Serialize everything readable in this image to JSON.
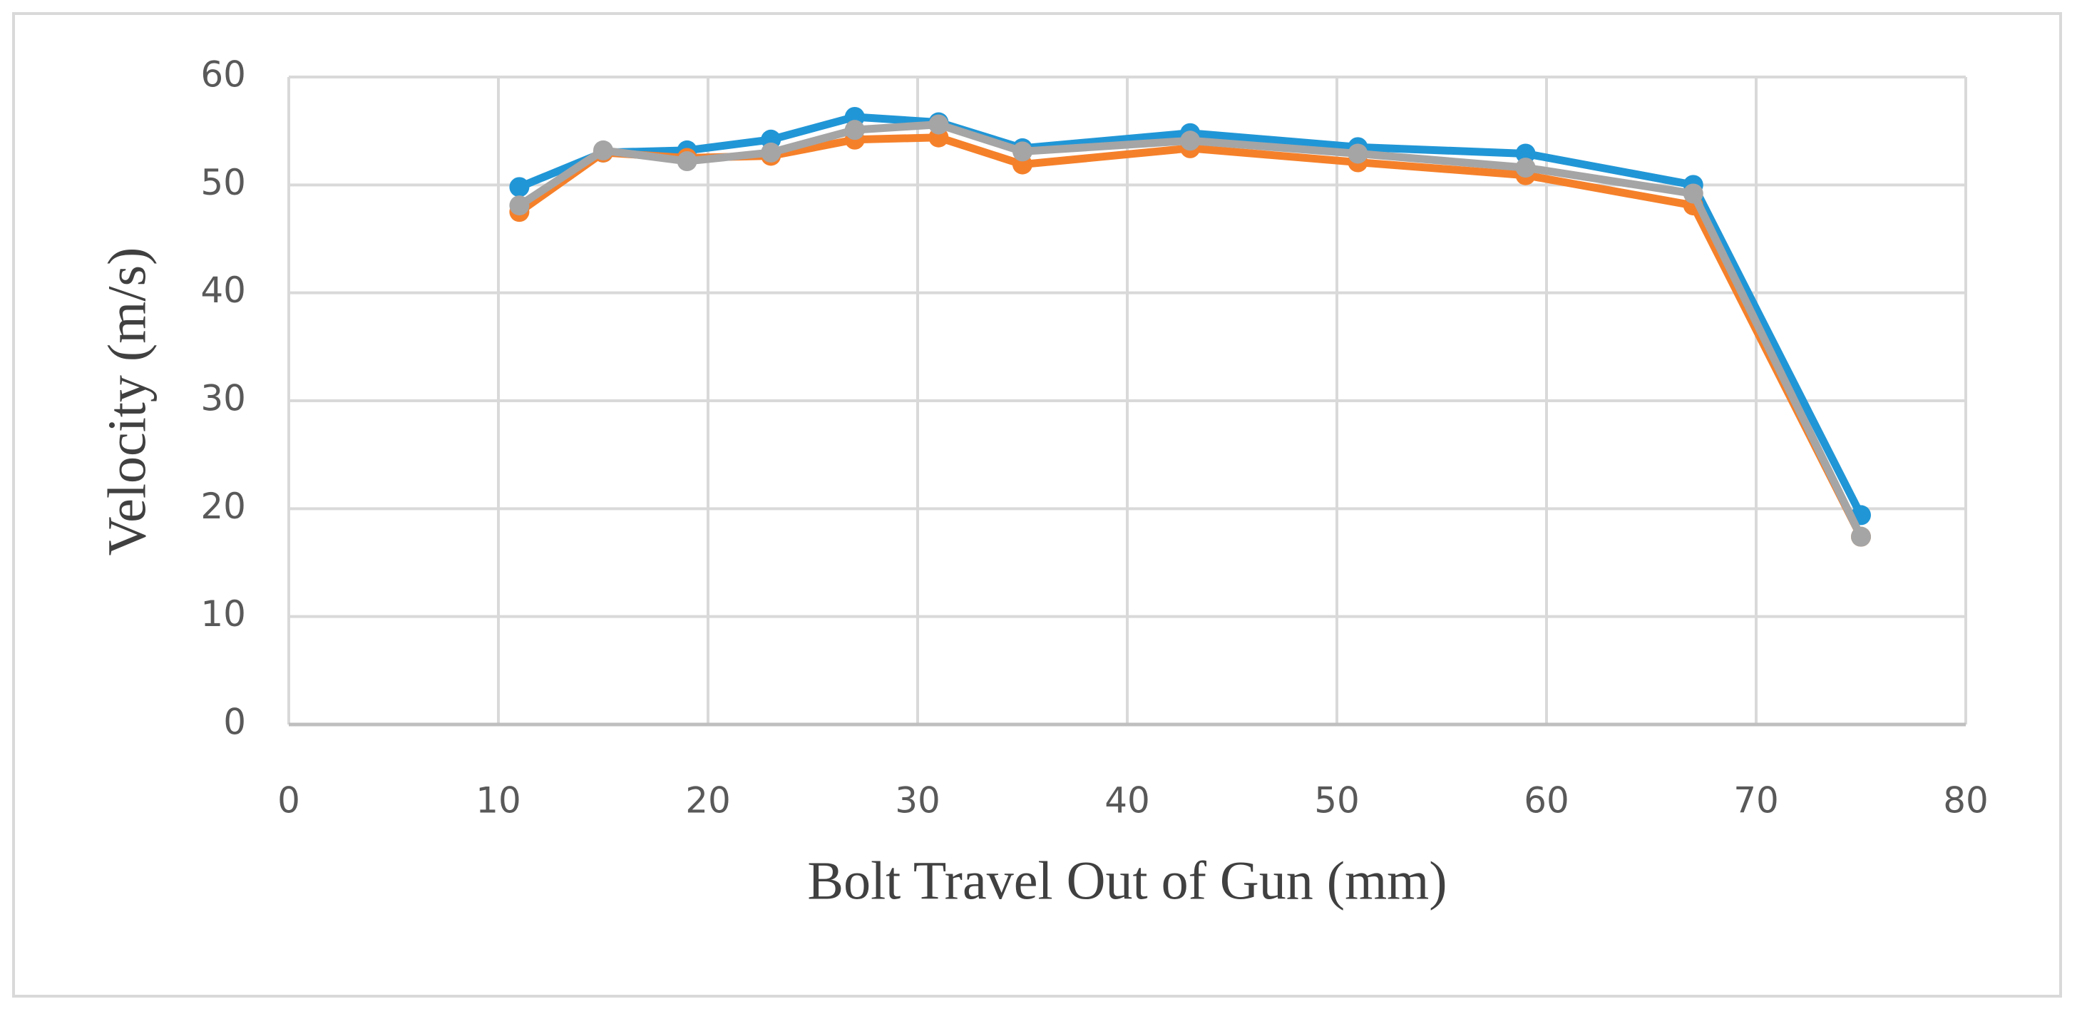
{
  "chart_data": {
    "type": "line",
    "x_label": "Bolt Travel Out of Gun (mm)",
    "y_label": "Velocity (m/s)",
    "x": [
      11,
      15,
      19,
      23,
      27,
      31,
      35,
      43,
      51,
      59,
      67,
      75
    ],
    "series": [
      {
        "color": "#2196d6",
        "values": [
          49.8,
          53,
          53.2,
          54.2,
          56.3,
          55.8,
          53.4,
          54.8,
          53.5,
          52.9,
          50,
          19.4
        ]
      },
      {
        "color": "#f5802a",
        "values": [
          47.5,
          53,
          52.5,
          52.7,
          54.2,
          54.4,
          51.9,
          53.4,
          52.1,
          50.9,
          48.1,
          17.4
        ]
      },
      {
        "color": "#a5a5a5",
        "values": [
          48.1,
          53.2,
          52.2,
          53,
          55.1,
          55.6,
          53.1,
          54.1,
          52.9,
          51.6,
          49.2,
          17.4
        ]
      }
    ],
    "xlim": [
      0,
      80
    ],
    "xticks": [
      0,
      10,
      20,
      30,
      40,
      50,
      60,
      70,
      80
    ],
    "ylim": [
      0,
      60
    ],
    "yticks": [
      0,
      10,
      20,
      30,
      40,
      50,
      60
    ],
    "grid": true
  }
}
